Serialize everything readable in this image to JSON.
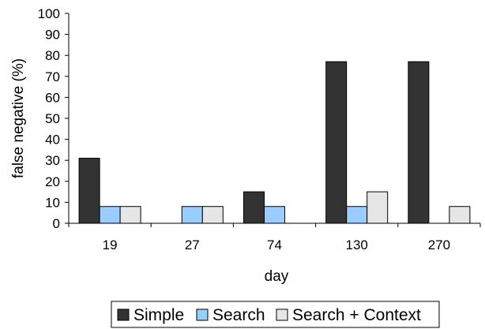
{
  "chart_data": {
    "type": "bar",
    "title": "",
    "xlabel": "day",
    "ylabel": "false negative (%)",
    "categories": [
      "19",
      "27",
      "74",
      "130",
      "270"
    ],
    "ylim": [
      0,
      100
    ],
    "yticks": [
      0,
      10,
      20,
      30,
      40,
      50,
      60,
      70,
      80,
      90,
      100
    ],
    "grid": false,
    "legend_position": "bottom",
    "series": [
      {
        "name": "Simple",
        "color": "#333333",
        "values": [
          31,
          0,
          15,
          77,
          77
        ]
      },
      {
        "name": "Search",
        "color": "#99ccff",
        "values": [
          8,
          8,
          8,
          8,
          0
        ]
      },
      {
        "name": "Search + Context",
        "color": "#e6e6e6",
        "values": [
          8,
          8,
          0,
          15,
          8
        ]
      }
    ]
  }
}
